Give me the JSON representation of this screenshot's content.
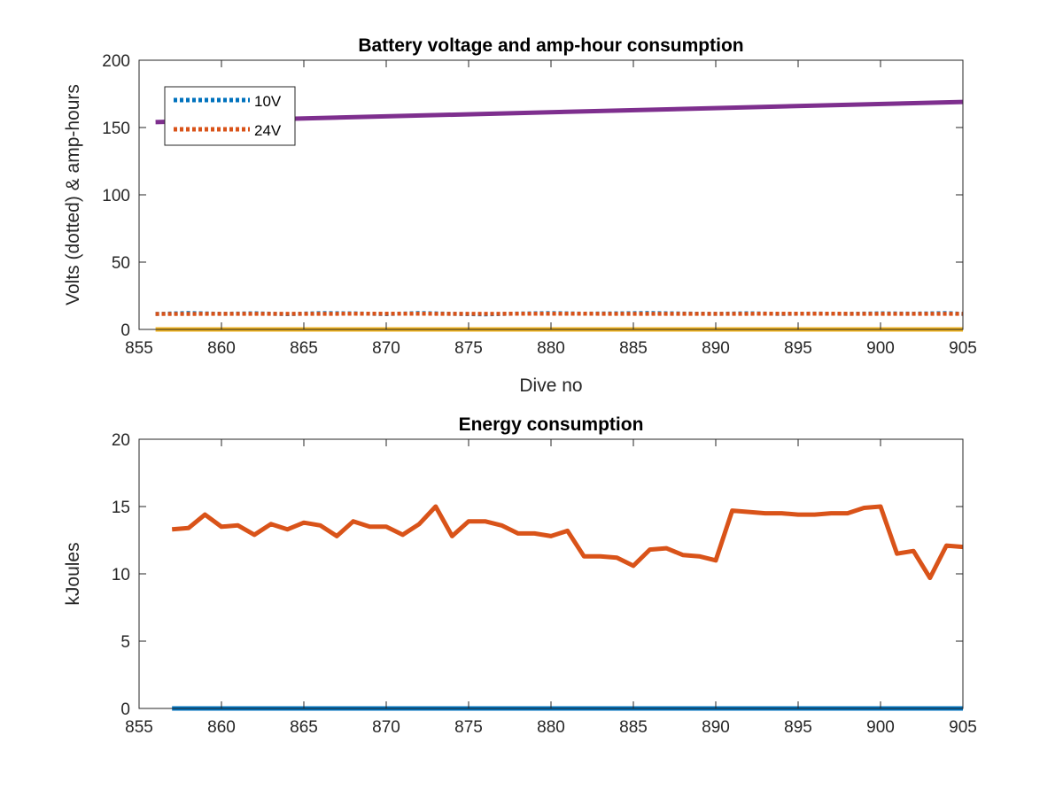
{
  "chart_data": [
    {
      "type": "line",
      "title": "Battery voltage and amp-hour consumption",
      "xlabel": "Dive no",
      "ylabel": "Volts (dotted) & amp-hours",
      "xlim": [
        855,
        905
      ],
      "ylim": [
        0,
        200
      ],
      "xticks": [
        "855",
        "860",
        "865",
        "870",
        "875",
        "880",
        "885",
        "890",
        "895",
        "900",
        "905"
      ],
      "yticks": [
        "0",
        "50",
        "100",
        "150",
        "200"
      ],
      "legend_position": "top-left",
      "series": [
        {
          "name": "10V",
          "color": "#0072BD",
          "style": "dotted",
          "x": [
            856,
            858,
            860,
            862,
            864,
            866,
            868,
            870,
            872,
            874,
            876,
            878,
            880,
            882,
            884,
            886,
            888,
            890,
            892,
            894,
            896,
            898,
            900,
            902,
            904,
            905
          ],
          "y": [
            11.5,
            12.2,
            11.6,
            12.0,
            11.3,
            12.1,
            11.9,
            11.4,
            12.2,
            11.6,
            11.2,
            11.8,
            12.1,
            11.7,
            11.9,
            12.2,
            11.8,
            11.6,
            12.0,
            11.5,
            11.8,
            11.6,
            11.9,
            11.7,
            12.1,
            11.6
          ]
        },
        {
          "name": "24V",
          "color": "#D95319",
          "style": "dotted",
          "x": [
            856,
            860,
            865,
            870,
            875,
            880,
            885,
            890,
            895,
            900,
            905
          ],
          "y": [
            11.5,
            11.6,
            11.6,
            11.7,
            11.6,
            11.7,
            11.6,
            11.6,
            11.7,
            11.6,
            11.6
          ]
        },
        {
          "color": "#7E2F8E",
          "style": "solid",
          "x": [
            856,
            905
          ],
          "y": [
            154,
            169
          ]
        },
        {
          "color": "#EDB120",
          "style": "solid",
          "x": [
            856,
            905
          ],
          "y": [
            0,
            0
          ]
        }
      ]
    },
    {
      "type": "line",
      "title": "Energy consumption",
      "xlabel": "",
      "ylabel": "kJoules",
      "xlim": [
        855,
        905
      ],
      "ylim": [
        0,
        20
      ],
      "xticks": [
        "855",
        "860",
        "865",
        "870",
        "875",
        "880",
        "885",
        "890",
        "895",
        "900",
        "905"
      ],
      "yticks": [
        "0",
        "5",
        "10",
        "15",
        "20"
      ],
      "series": [
        {
          "color": "#D95319",
          "style": "solid",
          "x": [
            857,
            858,
            859,
            860,
            861,
            862,
            863,
            864,
            865,
            866,
            867,
            868,
            869,
            870,
            871,
            872,
            873,
            874,
            875,
            876,
            877,
            878,
            879,
            880,
            881,
            882,
            883,
            884,
            885,
            886,
            887,
            888,
            889,
            890,
            891,
            892,
            893,
            894,
            895,
            896,
            897,
            898,
            899,
            900,
            901,
            902,
            903,
            904,
            905
          ],
          "y": [
            13.3,
            13.4,
            14.4,
            13.5,
            13.6,
            12.9,
            13.7,
            13.3,
            13.8,
            13.6,
            12.8,
            13.9,
            13.5,
            13.5,
            12.9,
            13.7,
            15.0,
            12.8,
            13.9,
            13.9,
            13.6,
            13.0,
            13.0,
            12.8,
            13.2,
            11.3,
            11.3,
            11.2,
            10.6,
            11.8,
            11.9,
            11.4,
            11.3,
            11.0,
            14.7,
            14.6,
            14.5,
            14.5,
            14.4,
            14.4,
            14.5,
            14.5,
            14.9,
            15.0,
            11.5,
            11.7,
            9.7,
            12.1,
            12.0
          ]
        },
        {
          "color": "#0072BD",
          "style": "solid",
          "x": [
            857,
            905
          ],
          "y": [
            0,
            0
          ]
        }
      ]
    }
  ]
}
